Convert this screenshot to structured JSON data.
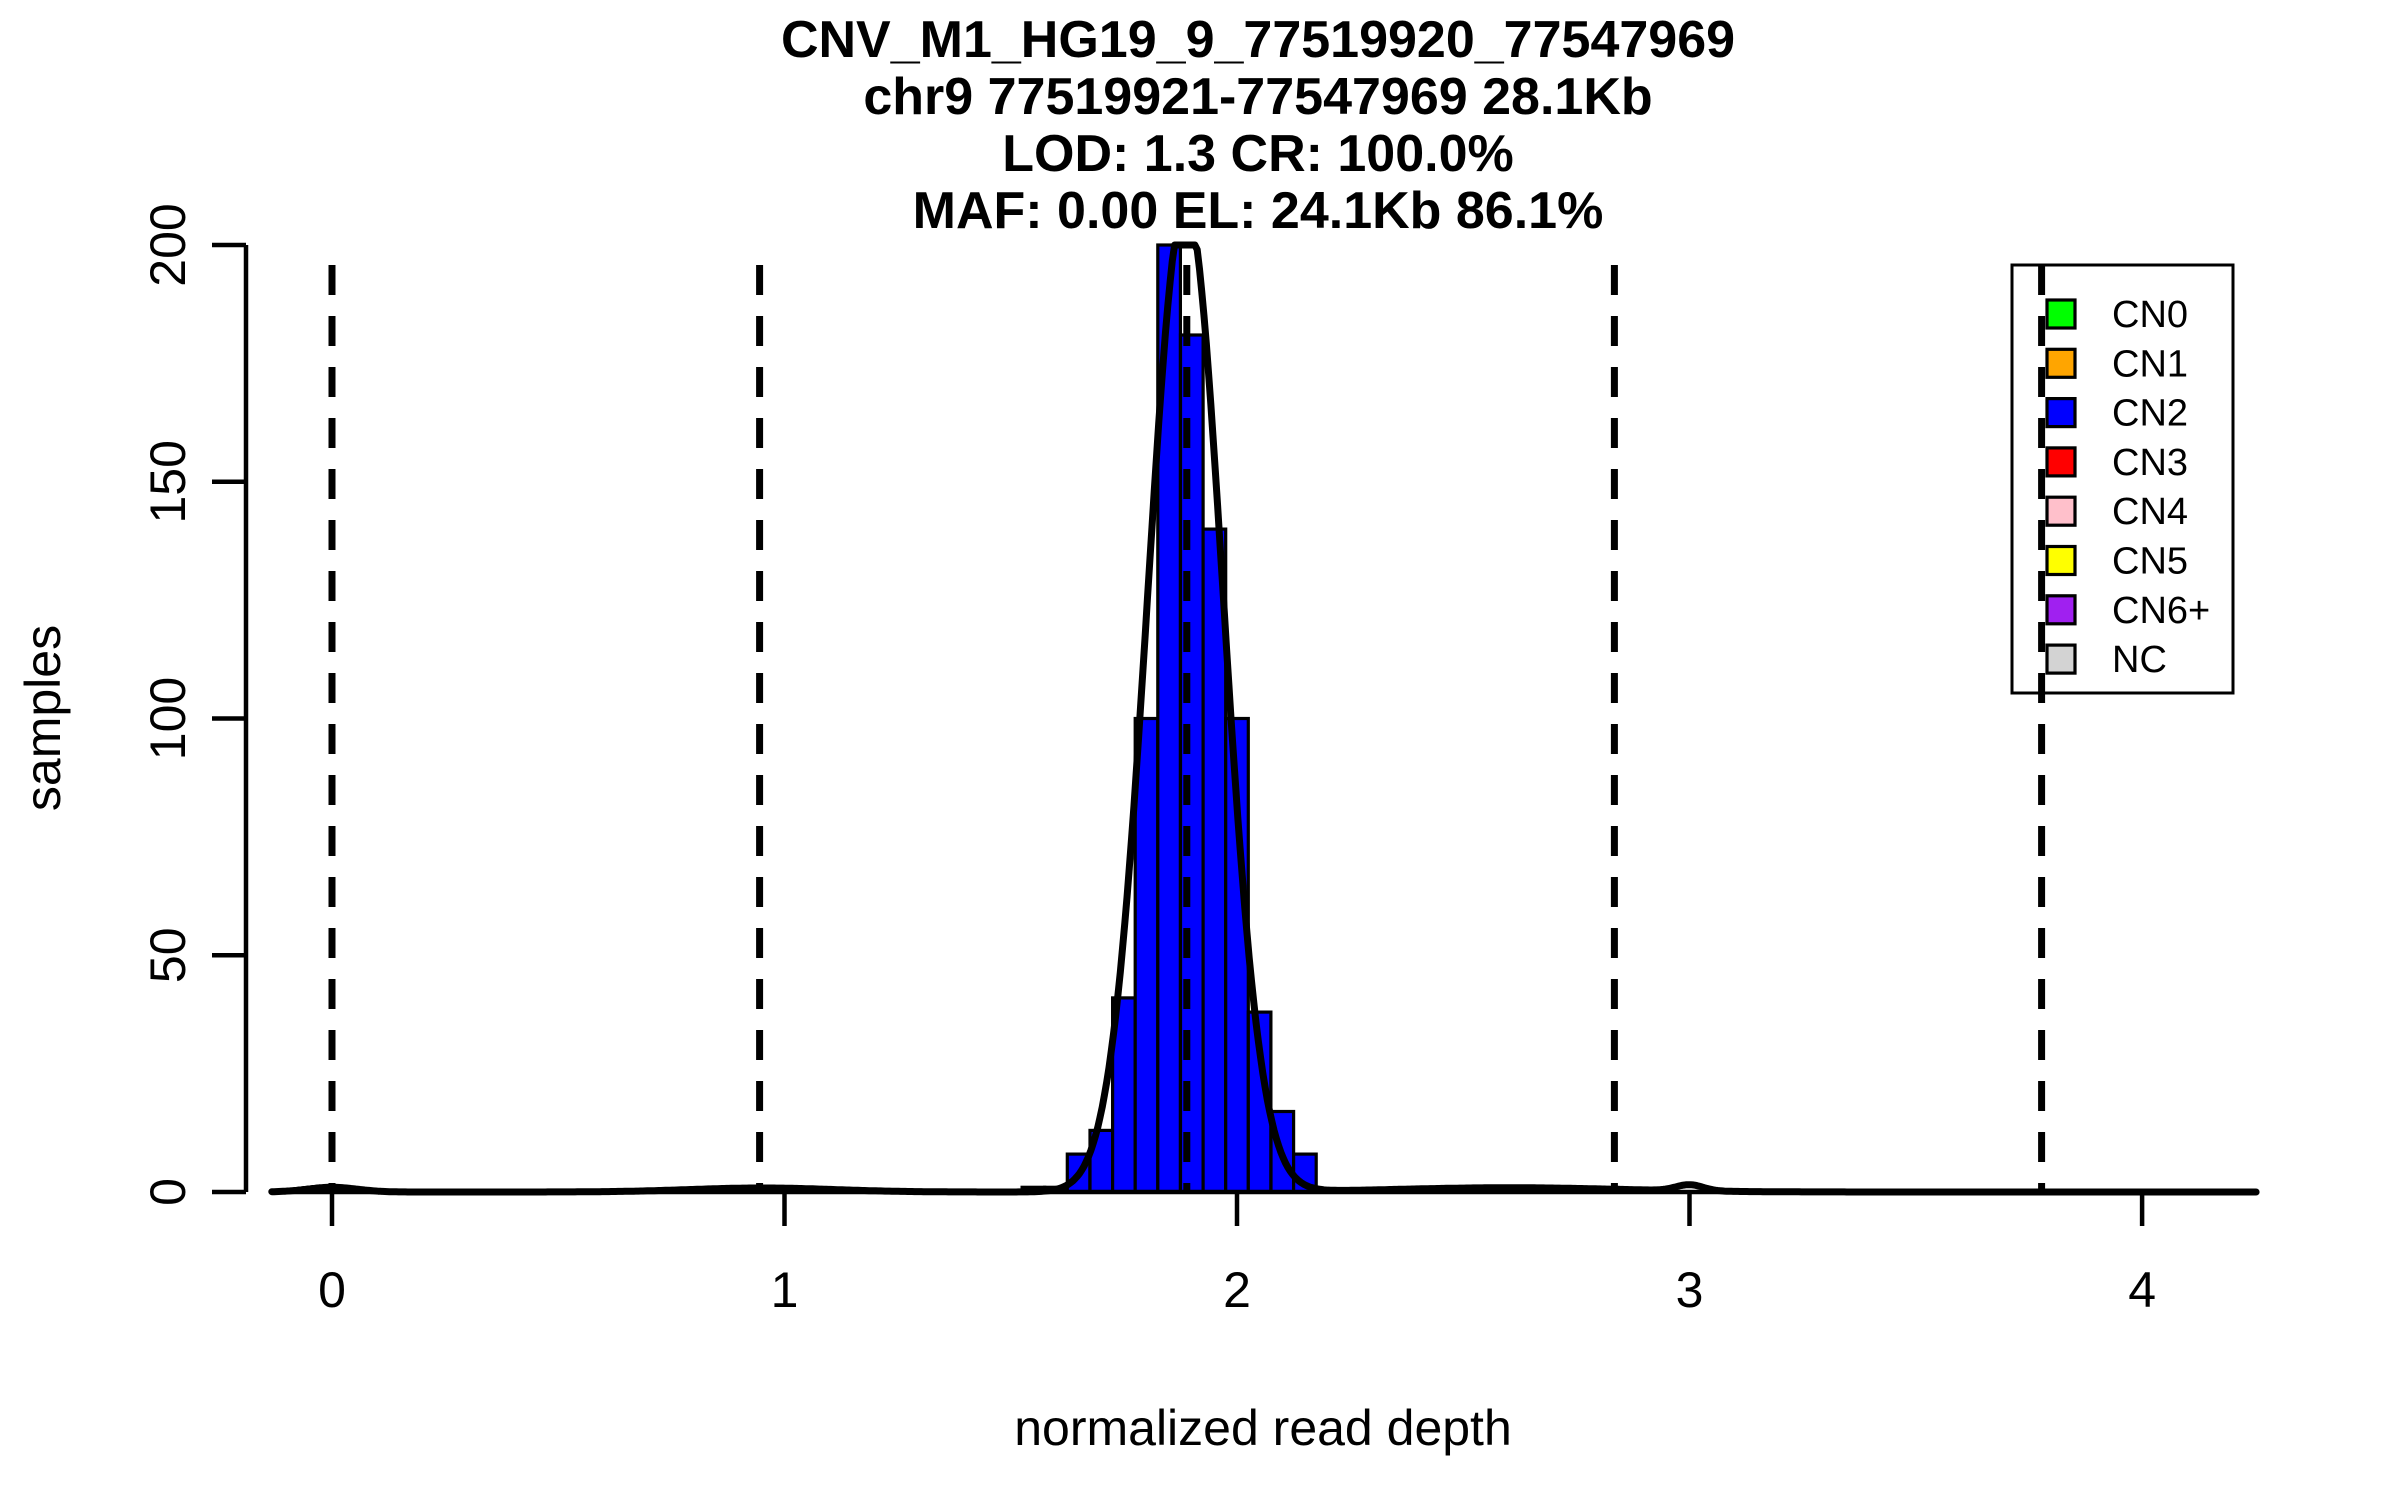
{
  "page": {
    "background_color": "#FFFFFF",
    "foreground_color": "#000000"
  },
  "chart_data": {
    "type": "bar",
    "subtype": "histogram_with_density_curve",
    "title_lines": [
      "CNV_M1_HG19_9_77519920_77547969",
      "chr9 77519921-77547969 28.1Kb",
      "LOD: 1.3 CR: 100.0%",
      "MAF: 0.00 EL: 24.1Kb 86.1%"
    ],
    "xlabel": "normalized read depth",
    "ylabel": "samples",
    "xlim": [
      -0.137,
      4.254
    ],
    "ylim": [
      0,
      200
    ],
    "x_ticks": [
      0,
      1,
      2,
      3,
      4
    ],
    "y_ticks": [
      0,
      50,
      100,
      150,
      200
    ],
    "grid": false,
    "y_tick_labels_rotated": true,
    "bar_fill_color": "#0000FF",
    "bar_edge_color": "#000000",
    "curve_color": "#000000",
    "dashed_line_color": "#000000",
    "histogram": {
      "bin_start": 1.525,
      "bin_width": 0.05,
      "counts": [
        1,
        1,
        8,
        13,
        41,
        100,
        200,
        181,
        140,
        100,
        38,
        17,
        8
      ],
      "peak_bin_clipped_at_ymax": true
    },
    "dashed_guide_lines_x": [
      0,
      0.945,
      1.889,
      2.834,
      3.778
    ],
    "density_curve_components": [
      {
        "mu": 1.886,
        "sigma": 0.083,
        "peak": 209
      },
      {
        "mu": 0.0,
        "sigma": 0.055,
        "peak": 1.0
      },
      {
        "mu": 0.95,
        "sigma": 0.16,
        "peak": 0.85
      },
      {
        "mu": 2.6,
        "sigma": 0.25,
        "peak": 0.9
      },
      {
        "mu": 3.0,
        "sigma": 0.03,
        "peak": 1.3
      }
    ],
    "legend": {
      "position": "top-right",
      "entries": [
        {
          "label": "CN0",
          "color": "#00FF00"
        },
        {
          "label": "CN1",
          "color": "#FFA500"
        },
        {
          "label": "CN2",
          "color": "#0000FF"
        },
        {
          "label": "CN3",
          "color": "#FF0000"
        },
        {
          "label": "CN4",
          "color": "#FFC0CB"
        },
        {
          "label": "CN5",
          "color": "#FFFF00"
        },
        {
          "label": "CN6+",
          "color": "#A020F0"
        },
        {
          "label": "NC",
          "color": "#D3D3D3"
        }
      ]
    }
  }
}
